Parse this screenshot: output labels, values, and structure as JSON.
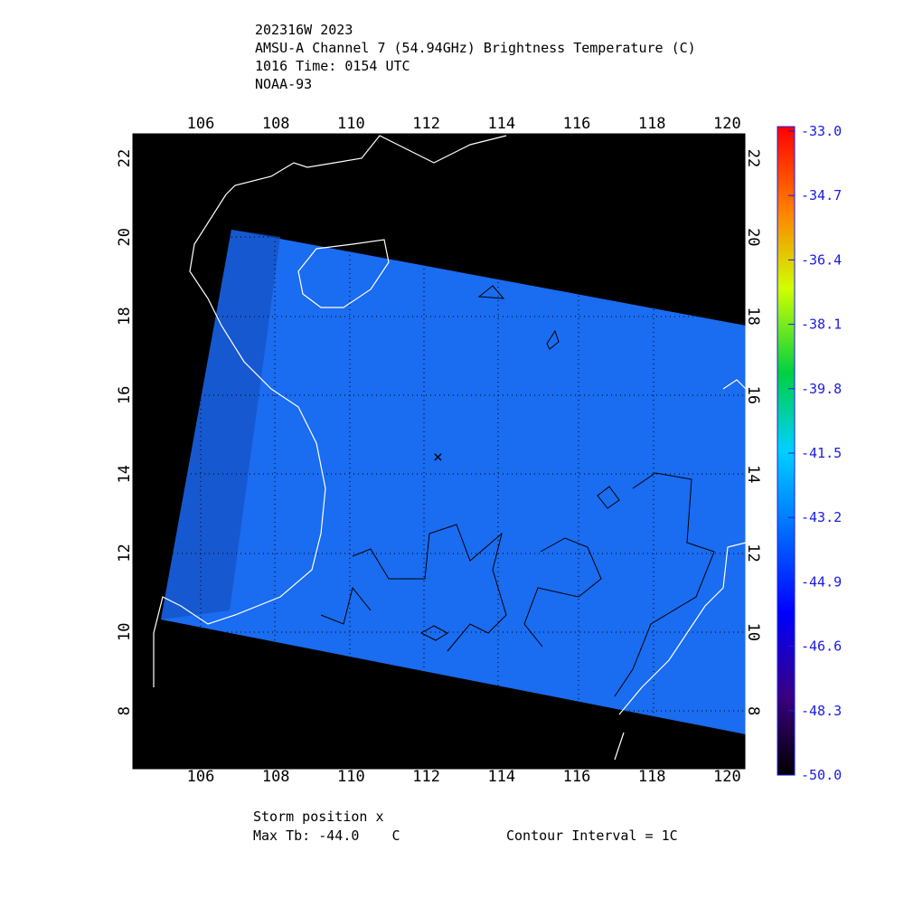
{
  "header": {
    "lines": [
      "202316W 2023",
      "AMSU-A Channel 7 (54.94GHz) Brightness Temperature (C)",
      "1016 Time: 0154 UTC",
      "NOAA-93"
    ]
  },
  "map": {
    "lon_labels": [
      "106",
      "108",
      "110",
      "112",
      "114",
      "116",
      "118",
      "120"
    ],
    "lat_labels": [
      "22",
      "20",
      "18",
      "16",
      "14",
      "12",
      "10",
      "8"
    ]
  },
  "colorbar": {
    "labels": [
      "-33.0",
      "-34.7",
      "-36.4",
      "-38.1",
      "-39.8",
      "-41.5",
      "-43.2",
      "-44.9",
      "-46.6",
      "-48.3",
      "-50.0"
    ]
  },
  "footer": {
    "storm": "Storm position x",
    "max_tb": "Max Tb: -44.0    C",
    "contour": "Contour Interval = 1C"
  }
}
